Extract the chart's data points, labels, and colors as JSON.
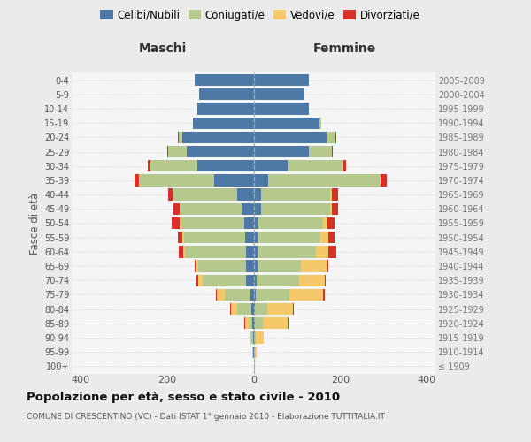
{
  "age_groups": [
    "100+",
    "95-99",
    "90-94",
    "85-89",
    "80-84",
    "75-79",
    "70-74",
    "65-69",
    "60-64",
    "55-59",
    "50-54",
    "45-49",
    "40-44",
    "35-39",
    "30-34",
    "25-29",
    "20-24",
    "15-19",
    "10-14",
    "5-9",
    "0-4"
  ],
  "birth_years": [
    "≤ 1909",
    "1910-1914",
    "1915-1919",
    "1920-1924",
    "1925-1929",
    "1930-1934",
    "1935-1939",
    "1940-1944",
    "1945-1949",
    "1950-1954",
    "1955-1959",
    "1960-1964",
    "1965-1969",
    "1970-1974",
    "1975-1979",
    "1980-1984",
    "1985-1989",
    "1990-1994",
    "1995-1999",
    "2000-2004",
    "2005-2009"
  ],
  "colors": {
    "celibi": "#4e79a7",
    "coniugati": "#b5c98e",
    "vedovi": "#f5c96a",
    "divorziati": "#d63028"
  },
  "males": {
    "celibi": [
      0,
      1,
      2,
      3,
      5,
      8,
      18,
      18,
      18,
      20,
      22,
      28,
      38,
      90,
      130,
      155,
      165,
      140,
      130,
      125,
      135
    ],
    "coniugati": [
      0,
      1,
      3,
      9,
      33,
      58,
      100,
      110,
      140,
      140,
      145,
      140,
      148,
      172,
      108,
      42,
      8,
      1,
      0,
      0,
      0
    ],
    "vedovi": [
      0,
      1,
      3,
      8,
      15,
      18,
      10,
      5,
      5,
      4,
      4,
      2,
      2,
      2,
      1,
      1,
      0,
      0,
      0,
      0,
      0
    ],
    "divorziati": [
      0,
      0,
      0,
      1,
      2,
      2,
      3,
      3,
      10,
      10,
      18,
      15,
      10,
      10,
      5,
      2,
      1,
      0,
      0,
      0,
      0
    ]
  },
  "females": {
    "celibi": [
      0,
      1,
      2,
      3,
      4,
      5,
      8,
      10,
      10,
      10,
      12,
      18,
      18,
      33,
      78,
      128,
      168,
      152,
      128,
      118,
      128
    ],
    "coniugati": [
      1,
      2,
      4,
      18,
      28,
      78,
      98,
      100,
      135,
      145,
      148,
      158,
      158,
      258,
      128,
      52,
      22,
      4,
      0,
      0,
      0
    ],
    "vedovi": [
      2,
      5,
      18,
      58,
      58,
      78,
      58,
      58,
      28,
      18,
      10,
      5,
      5,
      3,
      2,
      1,
      0,
      0,
      0,
      0,
      0
    ],
    "divorziati": [
      0,
      0,
      0,
      1,
      3,
      4,
      3,
      5,
      18,
      14,
      18,
      14,
      14,
      14,
      5,
      1,
      1,
      0,
      0,
      0,
      0
    ]
  },
  "xlim": 420,
  "title": "Popolazione per età, sesso e stato civile - 2010",
  "subtitle": "COMUNE DI CRESCENTINO (VC) - Dati ISTAT 1° gennaio 2010 - Elaborazione TUTTITALIA.IT",
  "ylabel_left": "Fasce di età",
  "xlabel_maschi": "Maschi",
  "xlabel_femmine": "Femmine",
  "bg_color": "#ebebeb",
  "plot_bg": "#f5f5f5"
}
